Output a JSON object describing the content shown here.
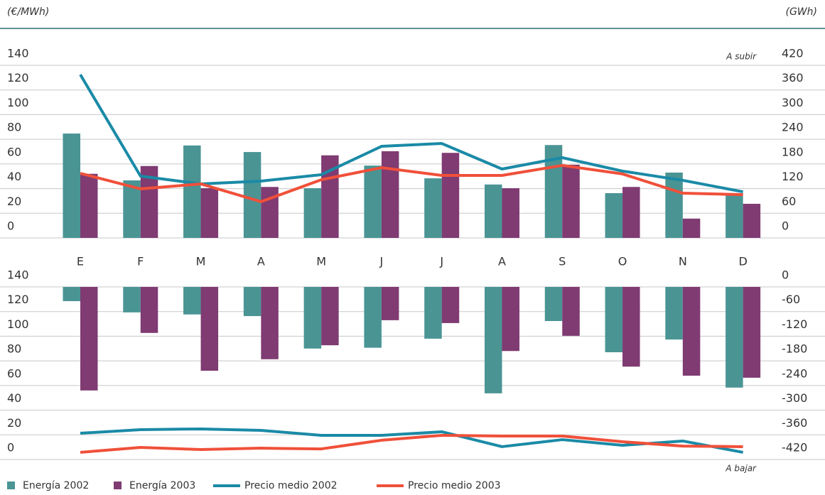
{
  "chart_data": [
    {
      "type": "combo",
      "y_label": "(€/MWh)",
      "y2_label": "(GWh)",
      "annotation": "A subir",
      "categories": [
        "E",
        "F",
        "M",
        "A",
        "M",
        "J",
        "J",
        "A",
        "S",
        "O",
        "N",
        "D"
      ],
      "ylim": [
        0,
        140
      ],
      "yticks": [
        0,
        20,
        40,
        60,
        80,
        100,
        120,
        140
      ],
      "y2lim": [
        0,
        420
      ],
      "y2ticks": [
        0,
        60,
        120,
        180,
        240,
        300,
        360,
        420
      ],
      "series": [
        {
          "name": "Energía 2002",
          "kind": "bar",
          "axis": "y2",
          "color": "#4a9494",
          "values": [
            254,
            140,
            225,
            209,
            121,
            176,
            145,
            130,
            226,
            109,
            159,
            109
          ]
        },
        {
          "name": "Energía 2003",
          "kind": "bar",
          "axis": "y2",
          "color": "#7f3b72",
          "values": [
            156,
            175,
            121,
            124,
            201,
            211,
            207,
            121,
            178,
            124,
            47,
            83
          ]
        },
        {
          "name": "Precio medio 2002",
          "kind": "line",
          "color": "#1a8aa6",
          "values": [
            132.5,
            50.1,
            43.8,
            46.1,
            51.3,
            74.3,
            76.6,
            55.9,
            65.1,
            54.2,
            46.7,
            37.4
          ]
        },
        {
          "name": "Precio medio 2003",
          "kind": "line",
          "color": "#f0503a",
          "values": [
            52.4,
            39.8,
            43.8,
            29.4,
            47.2,
            57,
            50.7,
            50.7,
            58.8,
            51.9,
            36.3,
            35.1
          ]
        }
      ]
    },
    {
      "type": "combo",
      "annotation": "A bajar",
      "ylim": [
        0,
        140
      ],
      "yticks": [
        0,
        20,
        40,
        60,
        80,
        100,
        120,
        140
      ],
      "y2lim": [
        -420,
        0
      ],
      "y2ticks": [
        -420,
        -360,
        -300,
        -240,
        -180,
        -120,
        -60,
        0
      ],
      "series": [
        {
          "kind": "bar",
          "axis": "y2",
          "color": "#4a9494",
          "values": [
            -34.6,
            -62,
            -67,
            -71,
            -150,
            -148,
            -126,
            -259,
            -83,
            -159,
            -128,
            -245
          ]
        },
        {
          "kind": "bar",
          "axis": "y2",
          "color": "#7f3b72",
          "values": [
            -252,
            -112,
            -204,
            -176,
            -142,
            -81,
            -88,
            -156,
            -119,
            -194,
            -216,
            -221
          ]
        },
        {
          "kind": "line",
          "color": "#1a8aa6",
          "values": [
            21.3,
            24.2,
            24.8,
            23.6,
            19.6,
            19.6,
            22.5,
            10.4,
            16.1,
            11.5,
            15,
            5.8
          ]
        },
        {
          "kind": "line",
          "color": "#f0503a",
          "values": [
            5.8,
            9.8,
            8.1,
            9.2,
            8.6,
            15.6,
            19.6,
            19,
            19,
            14.4,
            10.9,
            10.4
          ]
        }
      ]
    }
  ]
}
